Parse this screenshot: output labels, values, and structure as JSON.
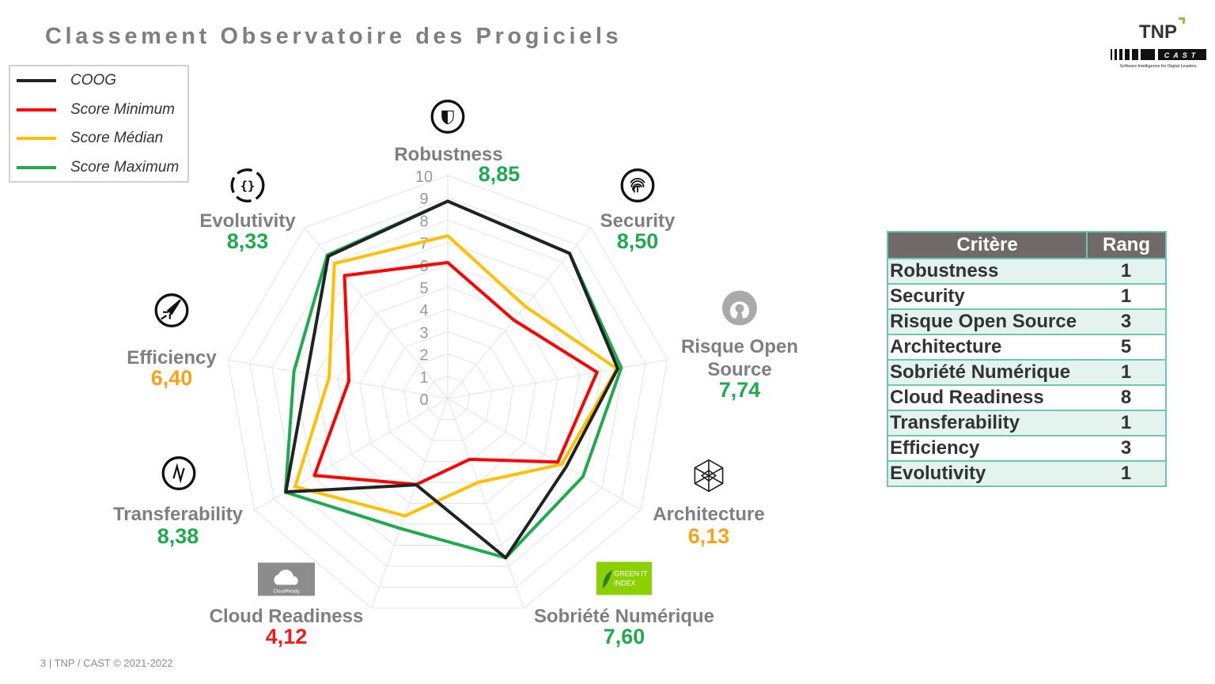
{
  "title": "Classement Observatoire des Progiciels",
  "footer": "3  |  TNP / CAST  © 2021-2022",
  "logo": {
    "brand1": "TNP",
    "brand2": "CAST",
    "tagline": "Software Intelligence for Digital Leaders"
  },
  "colors": {
    "good": "#1faa4f",
    "medium": "#f7a21b",
    "bad": "#ee1c1c",
    "label": "#7f7f7f"
  },
  "table": {
    "headers": [
      "Critère",
      "Rang"
    ],
    "rows": [
      {
        "critere": "Robustness",
        "rang": "1"
      },
      {
        "critere": "Security",
        "rang": "1"
      },
      {
        "critere": "Risque Open Source",
        "rang": "3"
      },
      {
        "critere": "Architecture",
        "rang": "5"
      },
      {
        "critere": "Sobriété Numérique",
        "rang": "1"
      },
      {
        "critere": "Cloud Readiness",
        "rang": "8"
      },
      {
        "critere": "Transferability",
        "rang": "1"
      },
      {
        "critere": "Efficiency",
        "rang": "3"
      },
      {
        "critere": "Evolutivity",
        "rang": "1"
      }
    ]
  },
  "badges": {
    "cloud": "CloudReady",
    "green": "GREEN IT INDEX"
  },
  "chart_data": {
    "type": "radar",
    "rlim": [
      0,
      10
    ],
    "ticks": [
      "0",
      "1",
      "2",
      "3",
      "4",
      "5",
      "6",
      "7",
      "8",
      "9",
      "10"
    ],
    "grid": true,
    "legend_placement": "top-left",
    "categories": [
      {
        "name": "Robustness",
        "value_label": "8,85",
        "value_color": "good",
        "icon": "shield-icon"
      },
      {
        "name": "Security",
        "value_label": "8,50",
        "value_color": "good",
        "icon": "fingerprint-icon"
      },
      {
        "name": "Risque Open Source",
        "value_label": "7,74",
        "value_color": "good",
        "icon": "open-source-icon"
      },
      {
        "name": "Architecture",
        "value_label": "6,13",
        "value_color": "medium",
        "icon": "network-cube-icon"
      },
      {
        "name": "Sobriété Numérique",
        "value_label": "7,60",
        "value_color": "good",
        "icon": "green-it-leaf-icon"
      },
      {
        "name": "Cloud Readiness",
        "value_label": "4,12",
        "value_color": "bad",
        "icon": "cloud-icon"
      },
      {
        "name": "Transferability",
        "value_label": "8,38",
        "value_color": "good",
        "icon": "transfer-icon"
      },
      {
        "name": "Efficiency",
        "value_label": "6,40",
        "value_color": "medium",
        "icon": "rocket-icon"
      },
      {
        "name": "Evolutivity",
        "value_label": "8,33",
        "value_color": "good",
        "icon": "braces-icon"
      }
    ],
    "series": [
      {
        "name": "Score Maximum",
        "color": "#1faa4f",
        "values": [
          8.85,
          8.5,
          7.9,
          7.0,
          7.6,
          6.2,
          8.4,
          7.0,
          8.4
        ]
      },
      {
        "name": "Score Médian",
        "color": "#ffc000",
        "values": [
          7.3,
          5.4,
          7.7,
          5.9,
          4.0,
          5.6,
          7.9,
          5.4,
          7.9
        ]
      },
      {
        "name": "Score Minimum",
        "color": "#ff0000",
        "values": [
          6.1,
          4.6,
          6.8,
          5.7,
          2.9,
          4.1,
          6.9,
          4.5,
          7.2
        ]
      },
      {
        "name": "COOG",
        "color": "#222222",
        "values": [
          8.85,
          8.5,
          7.74,
          6.13,
          7.6,
          4.12,
          8.38,
          6.4,
          8.33
        ]
      }
    ],
    "legend_order": [
      "COOG",
      "Score Minimum",
      "Score Médian",
      "Score Maximum"
    ]
  }
}
